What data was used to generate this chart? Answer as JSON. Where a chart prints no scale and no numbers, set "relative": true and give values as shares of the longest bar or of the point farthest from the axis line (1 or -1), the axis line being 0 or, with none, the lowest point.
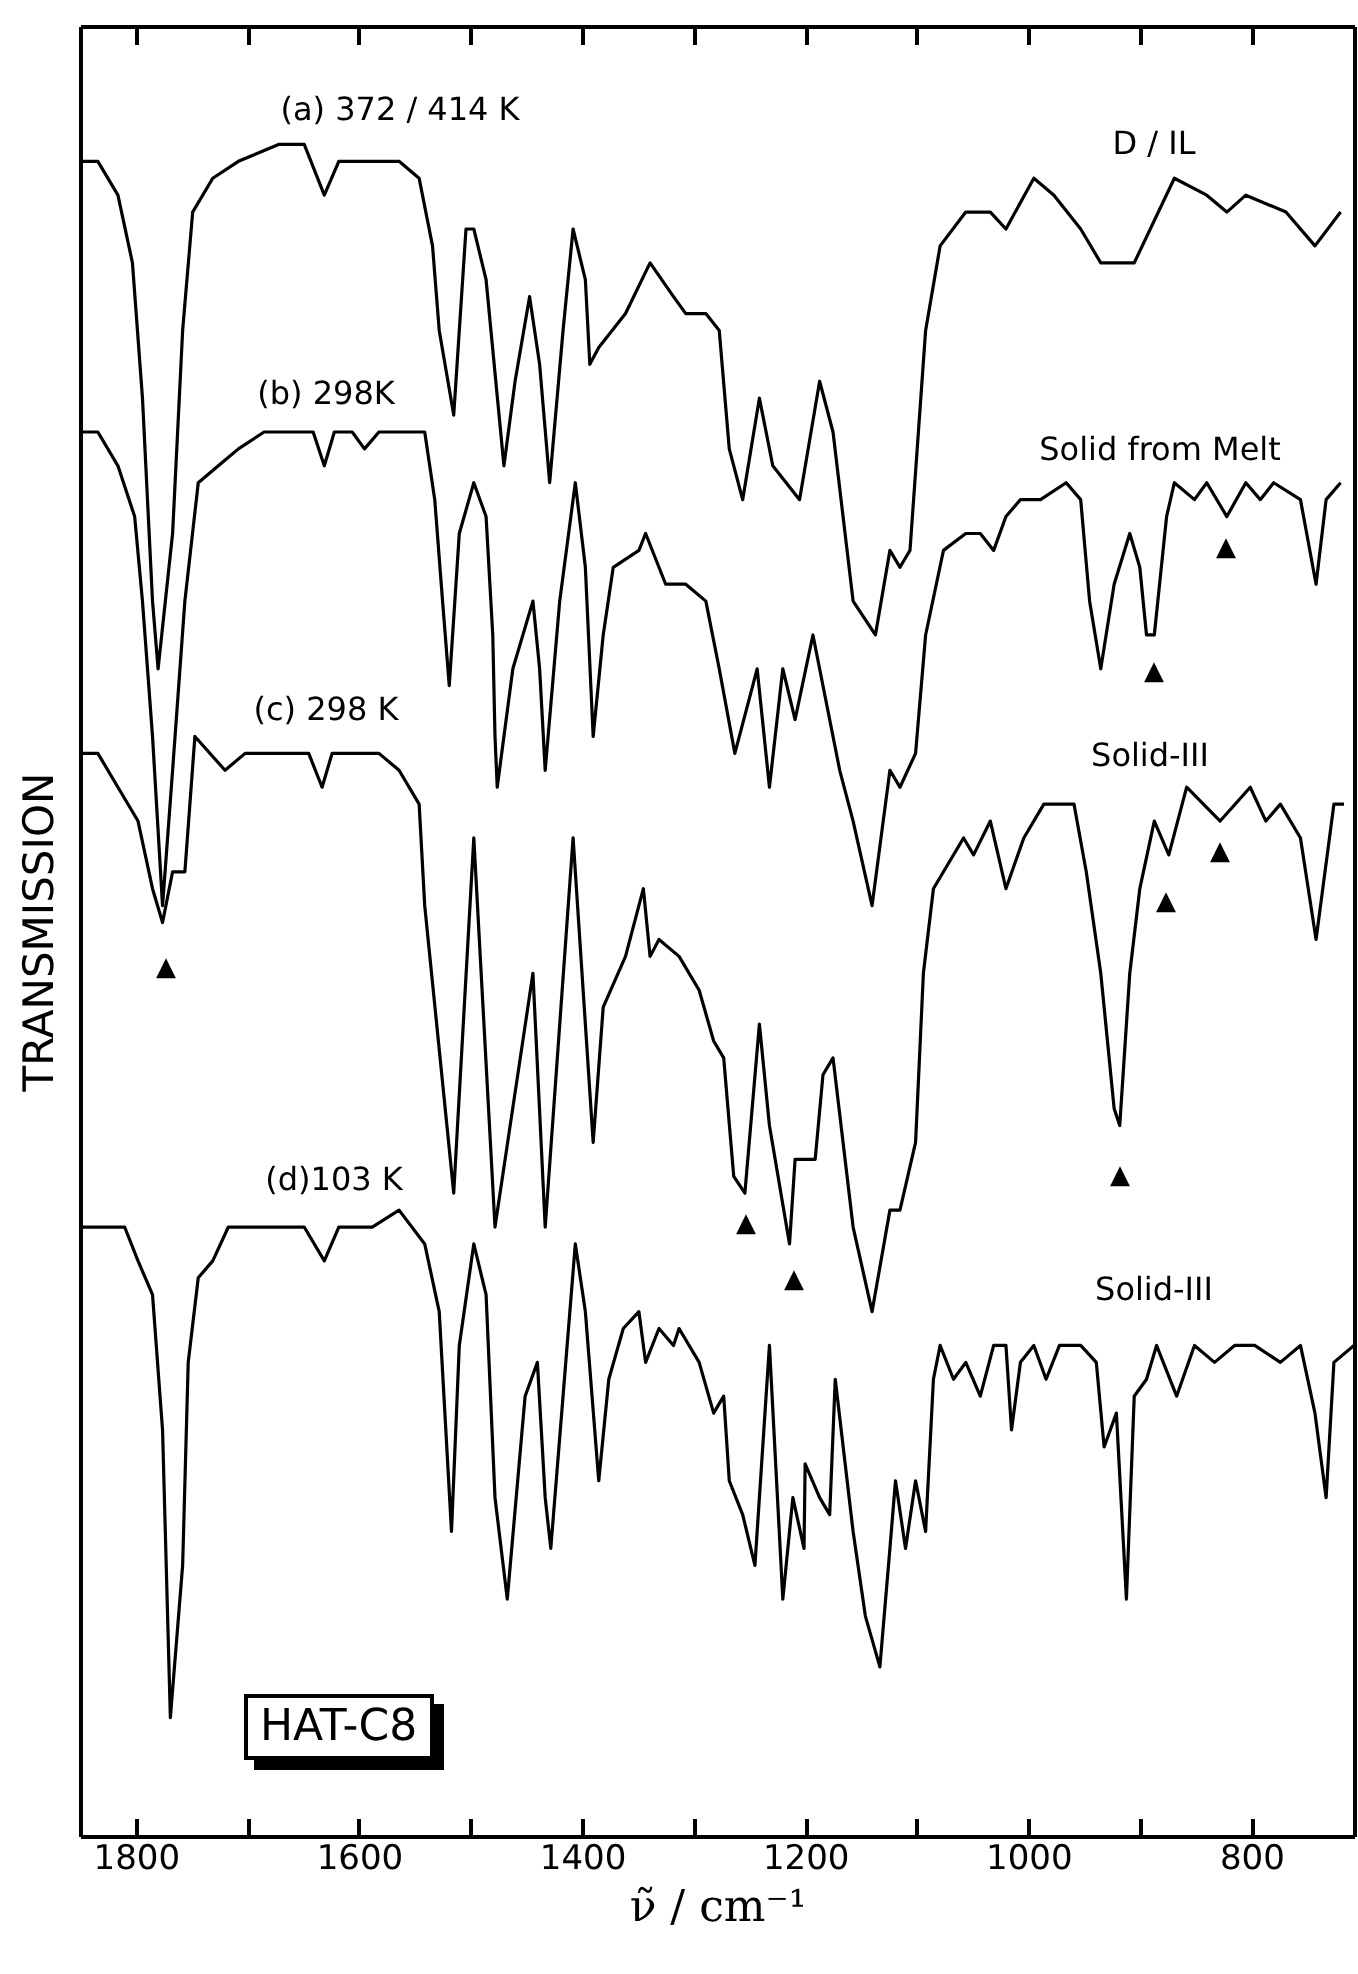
{
  "chart_data": {
    "type": "line",
    "relative": true,
    "xlabel": "ν̃ / cm⁻¹",
    "ylabel": "TRANSMISSION",
    "xlim": [
      1850,
      708
    ],
    "xticks": [
      1800,
      {
        "value": 1700,
        "label": null
      },
      1600,
      {
        "value": 1500,
        "label": null
      },
      1400,
      {
        "value": 1300,
        "label": null
      },
      1200,
      {
        "value": 1100,
        "label": null
      },
      1000,
      {
        "value": 900,
        "label": null
      },
      800
    ],
    "annotations": [
      "(a) 372 / 414 K",
      "D / IL",
      "(b) 298K",
      "Solid from Melt",
      "(c) 298 K",
      "Solid-III",
      "(d)103 K",
      "Solid-III",
      "▲",
      "▲",
      "▲",
      "▲",
      "▲",
      "▲",
      "▲",
      "▲",
      "HAT-C8"
    ],
    "series": [
      {
        "color": "#000000",
        "x": [
          1850,
          1834,
          1816,
          1803,
          1794,
          1785,
          1780,
          1767,
          1758,
          1749,
          1731,
          1708,
          1672,
          1649,
          1631,
          1618,
          1588,
          1564,
          1546,
          1534,
          1528,
          1515,
          1504,
          1497,
          1486,
          1470,
          1460,
          1447,
          1438,
          1429,
          1417,
          1408,
          1397,
          1393,
          1385,
          1361,
          1339,
          1318,
          1307,
          1289,
          1277,
          1268,
          1256,
          1241,
          1229,
          1205,
          1187,
          1175,
          1157,
          1137,
          1124,
          1115,
          1106,
          1092,
          1079,
          1056,
          1034,
          1020,
          995,
          977,
          953,
          935,
          905,
          869,
          840,
          822,
          805,
          769,
          743,
          720
        ],
        "values": [
          0.99,
          0.99,
          0.97,
          0.93,
          0.85,
          0.73,
          0.69,
          0.77,
          0.89,
          0.96,
          0.98,
          0.99,
          1.0,
          1.0,
          0.97,
          0.99,
          0.99,
          0.99,
          0.98,
          0.94,
          0.89,
          0.84,
          0.95,
          0.95,
          0.92,
          0.81,
          0.86,
          0.91,
          0.87,
          0.8,
          0.89,
          0.95,
          0.92,
          0.87,
          0.88,
          0.9,
          0.93,
          0.91,
          0.9,
          0.9,
          0.89,
          0.82,
          0.79,
          0.85,
          0.81,
          0.79,
          0.86,
          0.83,
          0.73,
          0.71,
          0.76,
          0.75,
          0.76,
          0.89,
          0.94,
          0.96,
          0.96,
          0.95,
          0.98,
          0.97,
          0.95,
          0.93,
          0.93,
          0.98,
          0.97,
          0.96,
          0.97,
          0.96,
          0.94,
          0.96
        ]
      },
      {
        "color": "#000000",
        "x": [
          1850,
          1834,
          1816,
          1801,
          1794,
          1785,
          1776,
          1767,
          1756,
          1744,
          1726,
          1708,
          1685,
          1659,
          1641,
          1631,
          1622,
          1606,
          1595,
          1582,
          1552,
          1541,
          1532,
          1525,
          1519,
          1510,
          1497,
          1486,
          1480,
          1478,
          1476,
          1462,
          1444,
          1438,
          1433,
          1420,
          1406,
          1397,
          1390,
          1381,
          1372,
          1349,
          1343,
          1325,
          1307,
          1289,
          1277,
          1263,
          1243,
          1232,
          1220,
          1209,
          1193,
          1169,
          1157,
          1140,
          1124,
          1115,
          1101,
          1092,
          1076,
          1056,
          1043,
          1031,
          1020,
          1007,
          989,
          966,
          953,
          945,
          935,
          923,
          909,
          900,
          894,
          887,
          876,
          869,
          851,
          840,
          822,
          805,
          792,
          780,
          756,
          742,
          733,
          720
        ],
        "values": [
          0.83,
          0.83,
          0.81,
          0.78,
          0.73,
          0.65,
          0.55,
          0.63,
          0.73,
          0.8,
          0.81,
          0.82,
          0.83,
          0.83,
          0.83,
          0.81,
          0.83,
          0.83,
          0.82,
          0.83,
          0.83,
          0.83,
          0.79,
          0.73,
          0.68,
          0.77,
          0.8,
          0.78,
          0.71,
          0.65,
          0.62,
          0.69,
          0.73,
          0.69,
          0.63,
          0.73,
          0.8,
          0.75,
          0.65,
          0.71,
          0.75,
          0.76,
          0.77,
          0.74,
          0.74,
          0.73,
          0.69,
          0.64,
          0.69,
          0.62,
          0.69,
          0.66,
          0.71,
          0.63,
          0.6,
          0.55,
          0.63,
          0.62,
          0.64,
          0.71,
          0.76,
          0.77,
          0.77,
          0.76,
          0.78,
          0.79,
          0.79,
          0.8,
          0.79,
          0.73,
          0.69,
          0.74,
          0.77,
          0.75,
          0.71,
          0.71,
          0.78,
          0.8,
          0.79,
          0.8,
          0.78,
          0.8,
          0.79,
          0.8,
          0.79,
          0.74,
          0.79,
          0.8
        ]
      },
      {
        "color": "#000000",
        "x": [
          1850,
          1834,
          1816,
          1798,
          1785,
          1776,
          1767,
          1756,
          1747,
          1720,
          1702,
          1659,
          1645,
          1633,
          1624,
          1600,
          1582,
          1564,
          1546,
          1541,
          1515,
          1497,
          1478,
          1444,
          1433,
          1408,
          1390,
          1381,
          1361,
          1345,
          1339,
          1331,
          1313,
          1295,
          1282,
          1273,
          1264,
          1254,
          1241,
          1232,
          1214,
          1209,
          1191,
          1184,
          1175,
          1157,
          1140,
          1124,
          1115,
          1101,
          1094,
          1085,
          1076,
          1058,
          1049,
          1034,
          1020,
          1004,
          986,
          959,
          948,
          935,
          923,
          918,
          909,
          900,
          887,
          874,
          858,
          828,
          801,
          787,
          774,
          756,
          742,
          726,
          717
        ],
        "values": [
          0.64,
          0.64,
          0.62,
          0.6,
          0.56,
          0.54,
          0.57,
          0.57,
          0.65,
          0.63,
          0.64,
          0.64,
          0.64,
          0.62,
          0.64,
          0.64,
          0.64,
          0.63,
          0.61,
          0.55,
          0.38,
          0.59,
          0.36,
          0.51,
          0.36,
          0.59,
          0.41,
          0.49,
          0.52,
          0.56,
          0.52,
          0.53,
          0.52,
          0.5,
          0.47,
          0.46,
          0.39,
          0.38,
          0.48,
          0.42,
          0.35,
          0.4,
          0.4,
          0.45,
          0.46,
          0.36,
          0.31,
          0.37,
          0.37,
          0.41,
          0.51,
          0.56,
          0.57,
          0.59,
          0.58,
          0.6,
          0.56,
          0.59,
          0.61,
          0.61,
          0.57,
          0.51,
          0.43,
          0.42,
          0.51,
          0.56,
          0.6,
          0.58,
          0.62,
          0.6,
          0.62,
          0.6,
          0.61,
          0.59,
          0.53,
          0.61,
          0.61
        ]
      },
      {
        "color": "#000000",
        "x": [
          1850,
          1828,
          1810,
          1798,
          1785,
          1776,
          1769,
          1758,
          1753,
          1744,
          1731,
          1717,
          1685,
          1649,
          1631,
          1618,
          1588,
          1564,
          1541,
          1528,
          1517,
          1510,
          1497,
          1486,
          1478,
          1467,
          1451,
          1440,
          1433,
          1428,
          1417,
          1406,
          1397,
          1385,
          1376,
          1363,
          1349,
          1343,
          1331,
          1318,
          1313,
          1295,
          1282,
          1273,
          1268,
          1256,
          1245,
          1232,
          1220,
          1211,
          1201,
          1200,
          1187,
          1178,
          1173,
          1157,
          1146,
          1133,
          1124,
          1119,
          1110,
          1101,
          1092,
          1085,
          1079,
          1067,
          1056,
          1043,
          1031,
          1020,
          1015,
          1007,
          995,
          984,
          972,
          953,
          939,
          932,
          921,
          912,
          905,
          894,
          885,
          867,
          851,
          833,
          815,
          797,
          774,
          756,
          743,
          733,
          726,
          708
        ],
        "values": [
          0.36,
          0.36,
          0.36,
          0.34,
          0.32,
          0.24,
          0.07,
          0.16,
          0.28,
          0.33,
          0.34,
          0.36,
          0.36,
          0.36,
          0.34,
          0.36,
          0.36,
          0.37,
          0.35,
          0.31,
          0.18,
          0.29,
          0.35,
          0.32,
          0.2,
          0.14,
          0.26,
          0.28,
          0.2,
          0.17,
          0.26,
          0.35,
          0.31,
          0.21,
          0.27,
          0.3,
          0.31,
          0.28,
          0.3,
          0.29,
          0.3,
          0.28,
          0.25,
          0.26,
          0.21,
          0.19,
          0.16,
          0.29,
          0.14,
          0.2,
          0.17,
          0.22,
          0.2,
          0.19,
          0.27,
          0.18,
          0.13,
          0.1,
          0.17,
          0.21,
          0.17,
          0.21,
          0.18,
          0.27,
          0.29,
          0.27,
          0.28,
          0.26,
          0.29,
          0.29,
          0.24,
          0.28,
          0.29,
          0.27,
          0.29,
          0.29,
          0.28,
          0.23,
          0.25,
          0.14,
          0.26,
          0.27,
          0.29,
          0.26,
          0.29,
          0.28,
          0.29,
          0.29,
          0.28,
          0.29,
          0.25,
          0.2,
          0.28,
          0.29
        ]
      }
    ]
  }
}
